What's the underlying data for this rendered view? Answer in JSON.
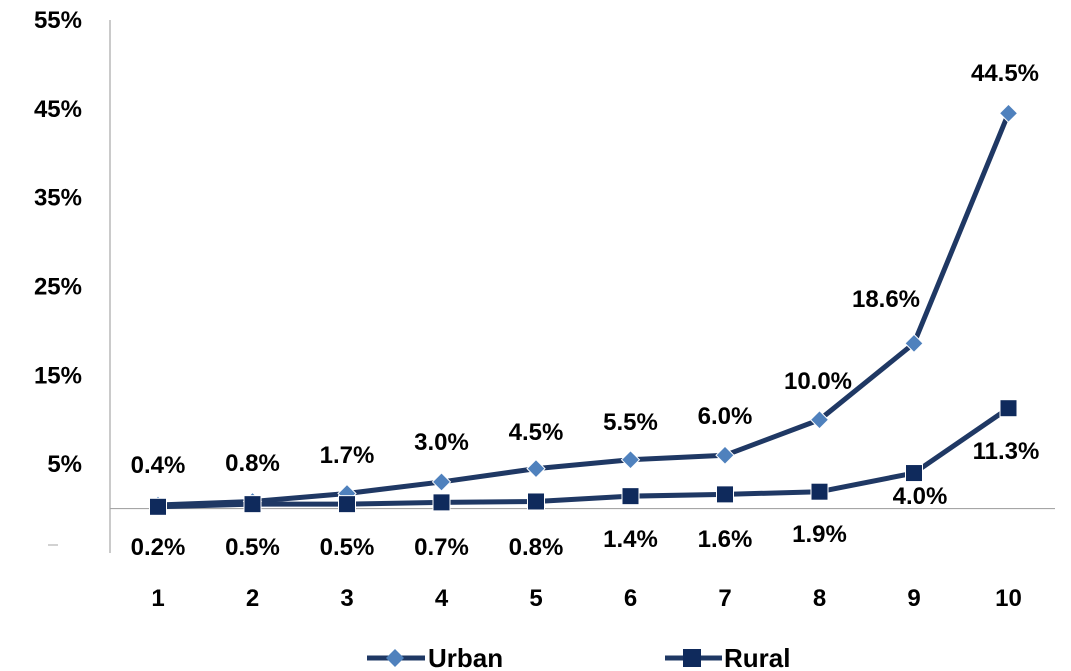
{
  "chart_data": {
    "type": "line",
    "title": "",
    "xlabel": "",
    "ylabel": "",
    "categories": [
      "1",
      "2",
      "3",
      "4",
      "5",
      "6",
      "7",
      "8",
      "9",
      "10"
    ],
    "y_ticks": [
      "5%",
      "15%",
      "25%",
      "35%",
      "45%",
      "55%"
    ],
    "y_tick_values": [
      5,
      15,
      25,
      35,
      45,
      55
    ],
    "ylim": [
      -5,
      55
    ],
    "grid": false,
    "legend_position": "bottom",
    "series": [
      {
        "name": "Urban",
        "marker": "diamond",
        "line_color": "#1F3864",
        "marker_color": "#4F81BD",
        "values": [
          0.4,
          0.8,
          1.7,
          3.0,
          4.5,
          5.5,
          6.0,
          10.0,
          18.6,
          44.5
        ],
        "labels": [
          "0.4%",
          "0.8%",
          "1.7%",
          "3.0%",
          "4.5%",
          "5.5%",
          "6.0%",
          "10.0%",
          "18.6%",
          "44.5%"
        ]
      },
      {
        "name": "Rural",
        "marker": "square",
        "line_color": "#1F3864",
        "marker_color": "#0F2A5C",
        "values": [
          0.2,
          0.5,
          0.5,
          0.7,
          0.8,
          1.4,
          1.6,
          1.9,
          4.0,
          11.3
        ],
        "labels": [
          "0.2%",
          "0.5%",
          "0.5%",
          "0.7%",
          "0.8%",
          "1.4%",
          "1.6%",
          "1.9%",
          "4.0%",
          "11.3%"
        ]
      }
    ]
  }
}
